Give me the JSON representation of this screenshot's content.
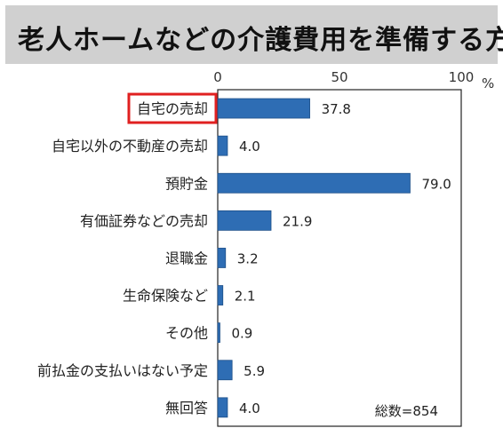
{
  "header": {
    "title": "老人ホームなどの介護費用を準備する方"
  },
  "chart_data": {
    "type": "bar",
    "orientation": "horizontal",
    "title": "老人ホームなどの介護費用を準備する方",
    "unit": "%",
    "categories": [
      "自宅の売却",
      "自宅以外の不動産の売却",
      "預貯金",
      "有価証券などの売却",
      "退職金",
      "生命保険など",
      "その他",
      "前払金の支払いはない予定",
      "無回答"
    ],
    "values": [
      37.8,
      4.0,
      79.0,
      21.9,
      3.2,
      2.1,
      0.9,
      5.9,
      4.0
    ],
    "value_labels": [
      "37.8",
      "4.0",
      "79.0",
      "21.9",
      "3.2",
      "2.1",
      "0.9",
      "5.9",
      "4.0"
    ],
    "xlim": [
      0,
      100
    ],
    "ticks": [
      "0",
      "50",
      "100"
    ],
    "highlighted_category": "自宅の売却",
    "bar_color": "#2e6db4",
    "highlight_color": "#e02020",
    "note": "総数=854",
    "grid": false
  }
}
